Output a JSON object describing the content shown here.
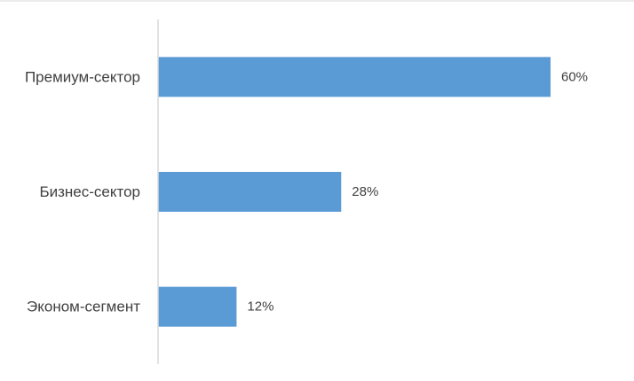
{
  "chart_data": {
    "type": "bar",
    "orientation": "horizontal",
    "categories": [
      "Премиум-сектор",
      "Бизнес-сектор",
      "Эконом-сегмент"
    ],
    "values": [
      60,
      28,
      12
    ],
    "data_labels": [
      "60%",
      "28%",
      "12%"
    ],
    "title": "",
    "xlabel": "",
    "ylabel": "",
    "xlim": [
      0,
      60
    ],
    "grid": false,
    "legend": "none",
    "colors": {
      "bar": "#5b9bd5",
      "axis": "#d9d9d9",
      "text": "#404040",
      "frame": "#d9d9d9"
    }
  }
}
